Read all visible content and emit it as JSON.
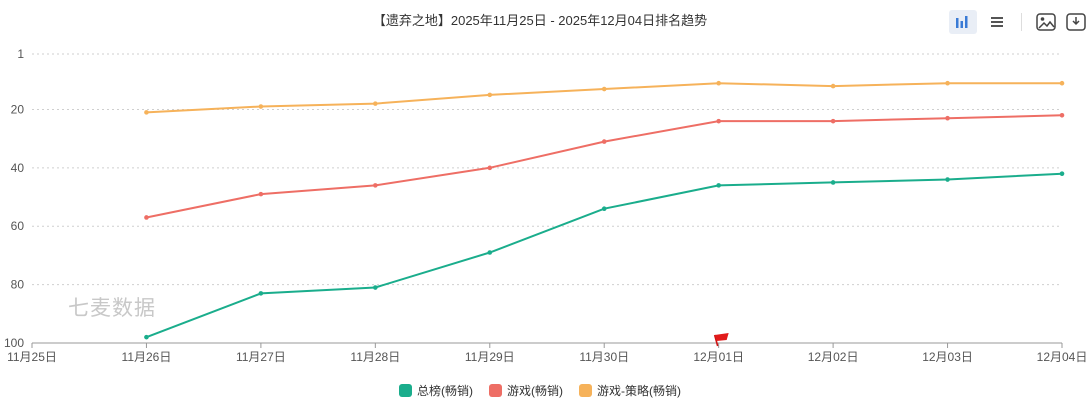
{
  "title": "【遗弃之地】2025年11月25日 - 2025年12月04日排名趋势",
  "watermark": "七麦数据",
  "toolbar": {
    "buttons": [
      {
        "icon": "bar-chart-icon",
        "active": true
      },
      {
        "icon": "list-icon",
        "active": false
      },
      {
        "icon": "image-icon",
        "active": false
      },
      {
        "icon": "download-icon",
        "active": false
      }
    ]
  },
  "colors": {
    "overall": "#1aad8c",
    "games": "#ee6e65",
    "strategy": "#f6b25a"
  },
  "chart_data": {
    "type": "line",
    "x": [
      "11月25日",
      "11月26日",
      "11月27日",
      "11月28日",
      "11月29日",
      "11月30日",
      "12月01日",
      "12月02日",
      "12月03日",
      "12月04日"
    ],
    "y_ticks": [
      1,
      20,
      40,
      60,
      80,
      100
    ],
    "ylim": [
      1,
      100
    ],
    "y_inverted": true,
    "grid": true,
    "legend_position": "bottom",
    "marker_category": "12月01日",
    "series": [
      {
        "name": "总榜(畅销)",
        "key": "overall",
        "values": [
          null,
          98,
          83,
          81,
          69,
          54,
          46,
          45,
          44,
          42
        ]
      },
      {
        "name": "游戏(畅销)",
        "key": "games",
        "values": [
          null,
          57,
          49,
          46,
          40,
          31,
          24,
          24,
          23,
          22
        ]
      },
      {
        "name": "游戏-策略(畅销)",
        "key": "strategy",
        "values": [
          null,
          21,
          19,
          18,
          15,
          13,
          11,
          12,
          11,
          11
        ]
      }
    ]
  }
}
